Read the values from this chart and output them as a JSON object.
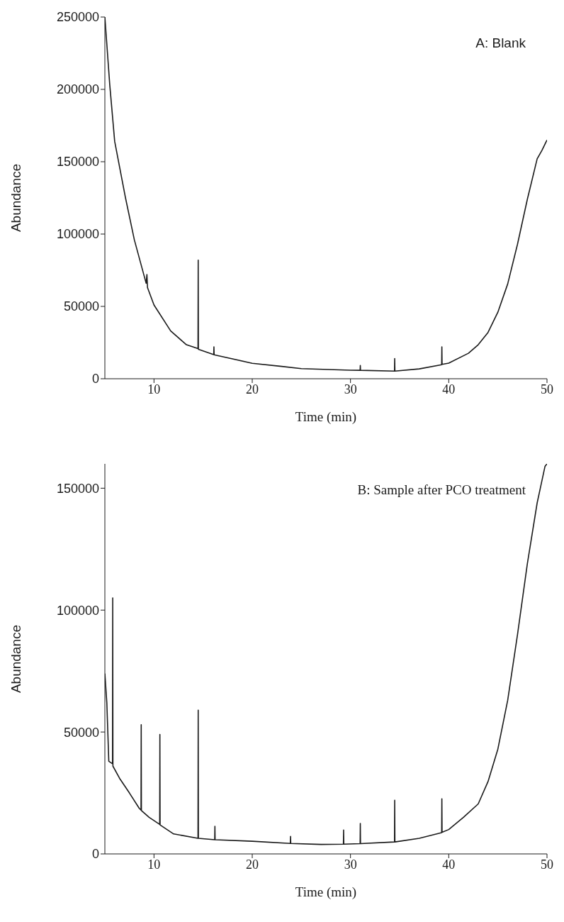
{
  "chart_data": [
    {
      "type": "line",
      "xlabel": "Time (min)",
      "ylabel": "Abundance",
      "annotations": [
        "A: Blank"
      ],
      "xlim": [
        5,
        50
      ],
      "xticks": [
        10,
        20,
        30,
        40,
        50
      ],
      "ylim": [
        0,
        250000
      ],
      "yticks": [
        0,
        50000,
        100000,
        150000,
        200000,
        250000
      ],
      "x": [
        5,
        5.5,
        6,
        7.1,
        8,
        9.2,
        9.28,
        9.34,
        10,
        11.7,
        13.3,
        14.48,
        14.5,
        14.52,
        16.08,
        16.1,
        16.12,
        20,
        23,
        25,
        30,
        30.98,
        31,
        31.02,
        34.48,
        34.5,
        34.52,
        37,
        39.28,
        39.3,
        39.32,
        40,
        42,
        43,
        44,
        45,
        46,
        47,
        48,
        49,
        49.5,
        50
      ],
      "series": [
        {
          "color": "#1a1a1a",
          "values": [
            250000,
            203000,
            164000,
            125000,
            96000,
            66000,
            72000,
            63000,
            51000,
            33000,
            23500,
            20800,
            82000,
            20400,
            16700,
            22000,
            16500,
            10700,
            8500,
            7000,
            5900,
            5800,
            9200,
            5800,
            5300,
            14000,
            5300,
            6800,
            9700,
            22000,
            9900,
            10800,
            17600,
            23500,
            32000,
            46000,
            65500,
            93000,
            124000,
            152000,
            158000,
            165000
          ]
        }
      ]
    },
    {
      "type": "line",
      "xlabel": "Time (min)",
      "ylabel": "Abundance",
      "annotations": [
        "B: Sample after PCO treatment"
      ],
      "xlim": [
        5,
        50
      ],
      "xticks": [
        10,
        20,
        30,
        40,
        50
      ],
      "ylim": [
        0,
        160000
      ],
      "yticks": [
        0,
        50000,
        100000,
        150000
      ],
      "x": [
        5,
        5.2,
        5.4,
        5.78,
        5.8,
        5.82,
        6.5,
        7.5,
        8.5,
        8.68,
        8.7,
        8.72,
        9.5,
        10.58,
        10.6,
        10.62,
        12,
        14.48,
        14.5,
        14.52,
        16.18,
        16.2,
        16.22,
        20,
        23.88,
        23.9,
        23.92,
        27,
        29.28,
        29.3,
        29.32,
        30.98,
        31,
        31.02,
        34.48,
        34.5,
        34.52,
        37,
        39.28,
        39.3,
        39.32,
        40,
        41.5,
        43,
        44,
        45,
        46,
        47,
        48,
        49,
        49.8,
        50
      ],
      "series": [
        {
          "color": "#1a1a1a",
          "values": [
            74000,
            62000,
            38000,
            37000,
            105000,
            36000,
            31000,
            25000,
            18700,
            18000,
            53000,
            17800,
            15000,
            12100,
            49000,
            11900,
            8200,
            6400,
            59000,
            6400,
            5800,
            11300,
            5800,
            5200,
            4300,
            7200,
            4300,
            3900,
            4000,
            9800,
            4000,
            4200,
            12500,
            4200,
            4900,
            22000,
            4900,
            6400,
            8700,
            22600,
            8900,
            10000,
            15000,
            20500,
            29700,
            43000,
            63000,
            90000,
            119000,
            144000,
            159000,
            160000
          ]
        }
      ]
    }
  ]
}
